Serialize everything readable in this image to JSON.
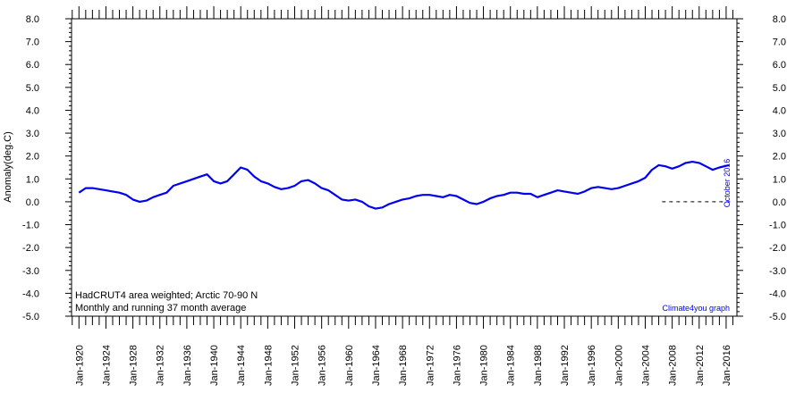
{
  "chart_data": {
    "type": "line",
    "ylabel": "Anomaly(deg.C)",
    "ylim": [
      -5.0,
      8.0
    ],
    "ytick_step": 1.0,
    "y_tick_labels": [
      "8.0",
      "7.0",
      "6.0",
      "5.0",
      "4.0",
      "3.0",
      "2.0",
      "1.0",
      "0.0",
      "-1.0",
      "-2.0",
      "-3.0",
      "-4.0",
      "-5.0"
    ],
    "xlim": [
      1918.9,
      2017.6
    ],
    "x_tick_labels": [
      "Jan-1920",
      "Jan-1924",
      "Jan-1928",
      "Jan-1932",
      "Jan-1936",
      "Jan-1940",
      "Jan-1944",
      "Jan-1948",
      "Jan-1952",
      "Jan-1956",
      "Jan-1960",
      "Jan-1964",
      "Jan-1968",
      "Jan-1972",
      "Jan-1976",
      "Jan-1980",
      "Jan-1984",
      "Jan-1988",
      "Jan-1992",
      "Jan-1996",
      "Jan-2000",
      "Jan-2004",
      "Jan-2008",
      "Jan-2012",
      "Jan-2016"
    ],
    "annotations": {
      "title_line1": "HadCRUT4 area weighted; Arctic 70-90 N",
      "title_line2": "Monthly and running 37 month average",
      "credit": "Climate4you graph",
      "date": "October 2016"
    },
    "series": [
      {
        "style": "thin",
        "color": "#0000ee",
        "description": "monthly anomaly",
        "x_start": 1920.0,
        "x_step": 0.0833333,
        "values": []
      },
      {
        "style": "thick",
        "color": "#0000ee",
        "x": [
          1920.0,
          1921,
          1922,
          1923,
          1924,
          1925,
          1926,
          1927,
          1928,
          1929,
          1930,
          1931,
          1932,
          1933,
          1934,
          1935,
          1936,
          1937,
          1938,
          1939,
          1940,
          1941,
          1942,
          1943,
          1944,
          1945,
          1946,
          1947,
          1948,
          1949,
          1950,
          1951,
          1952,
          1953,
          1954,
          1955,
          1956,
          1957,
          1958,
          1959,
          1960,
          1961,
          1962,
          1963,
          1964,
          1965,
          1966,
          1967,
          1968,
          1969,
          1970,
          1971,
          1972,
          1973,
          1974,
          1975,
          1976,
          1977,
          1978,
          1979,
          1980,
          1981,
          1982,
          1983,
          1984,
          1985,
          1986,
          1987,
          1988,
          1989,
          1990,
          1991,
          1992,
          1993,
          1994,
          1995,
          1996,
          1997,
          1998,
          1999,
          2000,
          2001,
          2002,
          2003,
          2004,
          2005,
          2006,
          2007,
          2008,
          2009,
          2010,
          2011,
          2012,
          2013,
          2014,
          2015,
          2016.4
        ],
        "values": [
          0.4,
          0.6,
          0.6,
          0.55,
          0.5,
          0.45,
          0.4,
          0.3,
          0.1,
          0.0,
          0.05,
          0.2,
          0.3,
          0.4,
          0.7,
          0.8,
          0.9,
          1.0,
          1.1,
          1.2,
          0.9,
          0.8,
          0.9,
          1.2,
          1.5,
          1.4,
          1.1,
          0.9,
          0.8,
          0.65,
          0.55,
          0.6,
          0.7,
          0.9,
          0.95,
          0.8,
          0.6,
          0.5,
          0.3,
          0.1,
          0.05,
          0.1,
          0.0,
          -0.2,
          -0.3,
          -0.25,
          -0.1,
          0.0,
          0.1,
          0.15,
          0.25,
          0.3,
          0.3,
          0.25,
          0.2,
          0.3,
          0.25,
          0.1,
          -0.05,
          -0.1,
          0.0,
          0.15,
          0.25,
          0.3,
          0.4,
          0.4,
          0.35,
          0.35,
          0.2,
          0.3,
          0.4,
          0.5,
          0.45,
          0.4,
          0.35,
          0.45,
          0.6,
          0.65,
          0.6,
          0.55,
          0.6,
          0.7,
          0.8,
          0.9,
          1.05,
          1.4,
          1.6,
          1.55,
          1.45,
          1.55,
          1.7,
          1.75,
          1.7,
          1.55,
          1.4,
          1.5,
          1.6
        ]
      }
    ]
  }
}
